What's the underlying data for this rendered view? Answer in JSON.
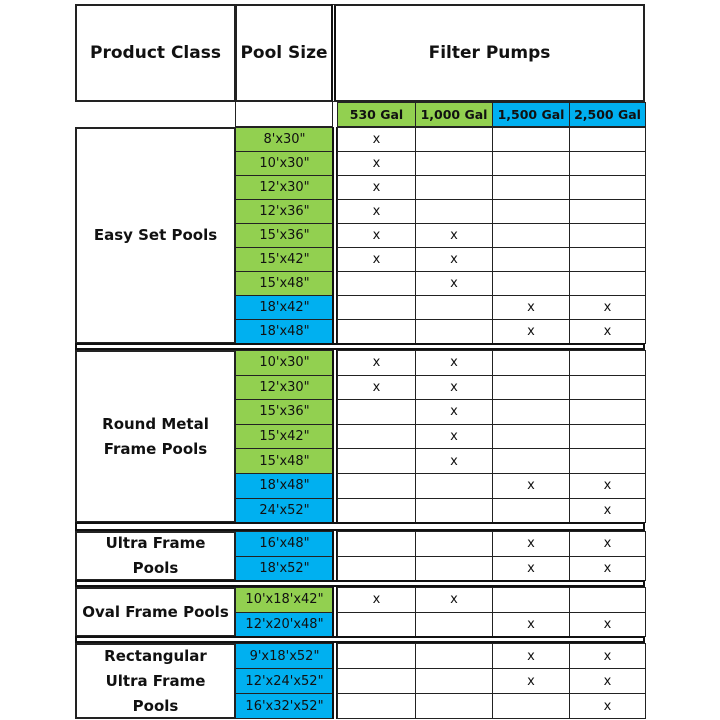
{
  "header": {
    "product_class": "Product Class",
    "pool_size": "Pool Size",
    "filter_pumps": "Filter Pumps"
  },
  "pumps": [
    {
      "label": "530 Gal",
      "color": "#92d050"
    },
    {
      "label": "1,000 Gal",
      "color": "#92d050"
    },
    {
      "label": "1,500 Gal",
      "color": "#00b0f0"
    },
    {
      "label": "2,500 Gal",
      "color": "#00b0f0"
    }
  ],
  "groups": [
    {
      "name": "Easy Set Pools",
      "rows": [
        {
          "size": "8'x30\"",
          "color": "#92d050",
          "marks": [
            "x",
            "",
            "",
            ""
          ]
        },
        {
          "size": "10'x30\"",
          "color": "#92d050",
          "marks": [
            "x",
            "",
            "",
            ""
          ]
        },
        {
          "size": "12'x30\"",
          "color": "#92d050",
          "marks": [
            "x",
            "",
            "",
            ""
          ]
        },
        {
          "size": "12'x36\"",
          "color": "#92d050",
          "marks": [
            "x",
            "",
            "",
            ""
          ]
        },
        {
          "size": "15'x36\"",
          "color": "#92d050",
          "marks": [
            "x",
            "x",
            "",
            ""
          ]
        },
        {
          "size": "15'x42\"",
          "color": "#92d050",
          "marks": [
            "x",
            "x",
            "",
            ""
          ]
        },
        {
          "size": "15'x48\"",
          "color": "#92d050",
          "marks": [
            "",
            "x",
            "",
            ""
          ]
        },
        {
          "size": "18'x42\"",
          "color": "#00b0f0",
          "marks": [
            "",
            "",
            "x",
            "x"
          ]
        },
        {
          "size": "18'x48\"",
          "color": "#00b0f0",
          "marks": [
            "",
            "",
            "x",
            "x"
          ]
        }
      ]
    },
    {
      "name": "Round Metal Frame Pools",
      "rows": [
        {
          "size": "10'x30\"",
          "color": "#92d050",
          "marks": [
            "x",
            "x",
            "",
            ""
          ]
        },
        {
          "size": "12'x30\"",
          "color": "#92d050",
          "marks": [
            "x",
            "x",
            "",
            ""
          ]
        },
        {
          "size": "15'x36\"",
          "color": "#92d050",
          "marks": [
            "",
            "x",
            "",
            ""
          ]
        },
        {
          "size": "15'x42\"",
          "color": "#92d050",
          "marks": [
            "",
            "x",
            "",
            ""
          ]
        },
        {
          "size": "15'x48\"",
          "color": "#92d050",
          "marks": [
            "",
            "x",
            "",
            ""
          ]
        },
        {
          "size": "18'x48\"",
          "color": "#00b0f0",
          "marks": [
            "",
            "",
            "x",
            "x"
          ]
        },
        {
          "size": "24'x52\"",
          "color": "#00b0f0",
          "marks": [
            "",
            "",
            "",
            "x"
          ]
        }
      ]
    },
    {
      "name": "Ultra Frame Pools",
      "rows": [
        {
          "size": "16'x48\"",
          "color": "#00b0f0",
          "marks": [
            "",
            "",
            "x",
            "x"
          ]
        },
        {
          "size": "18'x52\"",
          "color": "#00b0f0",
          "marks": [
            "",
            "",
            "x",
            "x"
          ]
        }
      ]
    },
    {
      "name": "Oval Frame Pools",
      "rows": [
        {
          "size": "10'x18'x42\"",
          "color": "#92d050",
          "marks": [
            "x",
            "x",
            "",
            ""
          ]
        },
        {
          "size": "12'x20'x48\"",
          "color": "#00b0f0",
          "marks": [
            "",
            "",
            "x",
            "x"
          ]
        }
      ]
    },
    {
      "name": "Rectangular Ultra Frame Pools",
      "rows": [
        {
          "size": "9'x18'x52\"",
          "color": "#00b0f0",
          "marks": [
            "",
            "",
            "x",
            "x"
          ]
        },
        {
          "size": "12'x24'x52\"",
          "color": "#00b0f0",
          "marks": [
            "",
            "",
            "x",
            "x"
          ]
        },
        {
          "size": "16'x32'x52\"",
          "color": "#00b0f0",
          "marks": [
            "",
            "",
            "",
            "x"
          ]
        }
      ]
    }
  ]
}
